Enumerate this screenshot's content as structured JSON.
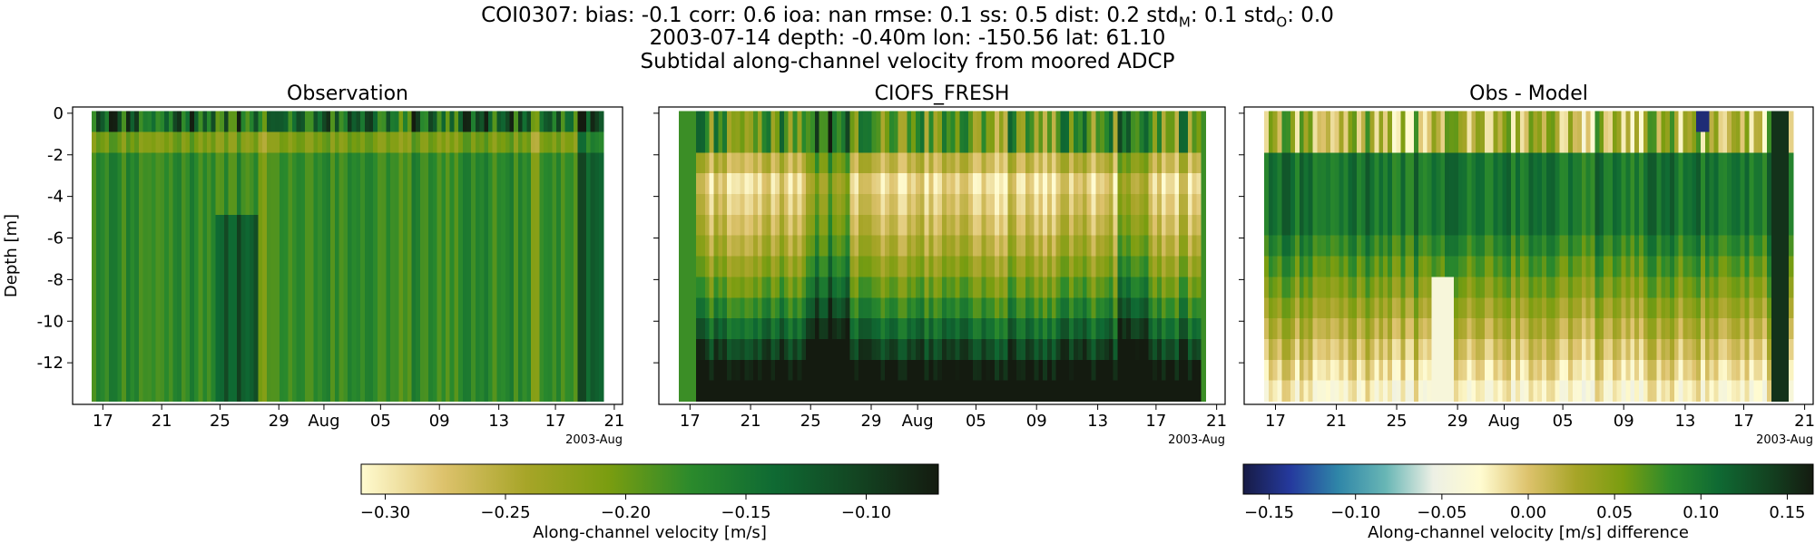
{
  "title": {
    "line1_prefix": "COI0307: bias: -0.1  corr: 0.6  ioa: nan  rmse: 0.1  ss: 0.5  dist: 0.2  std",
    "std_m_sub": "M",
    "std_m_value": ": 0.1  std",
    "std_o_sub": "O",
    "std_o_value": ": 0.0",
    "line2": "2003-07-14 depth: -0.40m lon: -150.56 lat: 61.10",
    "line3": "Subtidal along-channel velocity from moored ADCP"
  },
  "chart_data": [
    {
      "type": "heatmap",
      "title": "Observation",
      "ylabel": "Depth [m]",
      "yticks": [
        0,
        -2,
        -4,
        -6,
        -8,
        -10,
        -12
      ],
      "ylim": [
        -14,
        0.3
      ],
      "xticks": [
        "17",
        "21",
        "25",
        "29",
        "Aug",
        "05",
        "09",
        "13",
        "17",
        "21"
      ],
      "x_offset_label": "2003-Aug",
      "colorbar": "cb1",
      "pattern": "obs"
    },
    {
      "type": "heatmap",
      "title": "CIOFS_FRESH",
      "yticks": [
        0,
        -2,
        -4,
        -6,
        -8,
        -10,
        -12
      ],
      "ylim": [
        -14,
        0.3
      ],
      "xticks": [
        "17",
        "21",
        "25",
        "29",
        "Aug",
        "05",
        "09",
        "13",
        "17",
        "21"
      ],
      "x_offset_label": "2003-Aug",
      "colorbar": "cb1",
      "pattern": "model"
    },
    {
      "type": "heatmap",
      "title": "Obs - Model",
      "yticks": [
        0,
        -2,
        -4,
        -6,
        -8,
        -10,
        -12
      ],
      "ylim": [
        -14,
        0.3
      ],
      "xticks": [
        "17",
        "21",
        "25",
        "29",
        "Aug",
        "05",
        "09",
        "13",
        "17",
        "21"
      ],
      "x_offset_label": "2003-Aug",
      "colorbar": "cb2",
      "pattern": "diff"
    }
  ],
  "colorbars": {
    "cb1": {
      "label": "Along-channel velocity [m/s]",
      "range": [
        -0.31,
        -0.07
      ],
      "ticks": [
        "−0.30",
        "−0.25",
        "−0.20",
        "−0.15",
        "−0.10"
      ],
      "tick_values": [
        -0.3,
        -0.25,
        -0.2,
        -0.15,
        -0.1
      ],
      "colors": [
        "#fffbd0",
        "#ddc26c",
        "#a7a528",
        "#7a9d10",
        "#2b8a2c",
        "#0f6a33",
        "#134522",
        "#141b10"
      ]
    },
    "cb2": {
      "label": "Along-channel velocity [m/s] difference",
      "range": [
        -0.165,
        0.165
      ],
      "ticks": [
        "−0.15",
        "−0.10",
        "−0.05",
        "0.00",
        "0.05",
        "0.10",
        "0.15"
      ],
      "tick_values": [
        -0.15,
        -0.1,
        -0.05,
        0.0,
        0.05,
        0.1,
        0.15
      ],
      "colors": [
        "#171b45",
        "#253a9e",
        "#2f86a8",
        "#68b6b5",
        "#edf0e5",
        "#fffbd0",
        "#ddc26c",
        "#a7a528",
        "#7a9d10",
        "#2b8a2c",
        "#0f6a33",
        "#134522",
        "#141b10"
      ]
    }
  }
}
